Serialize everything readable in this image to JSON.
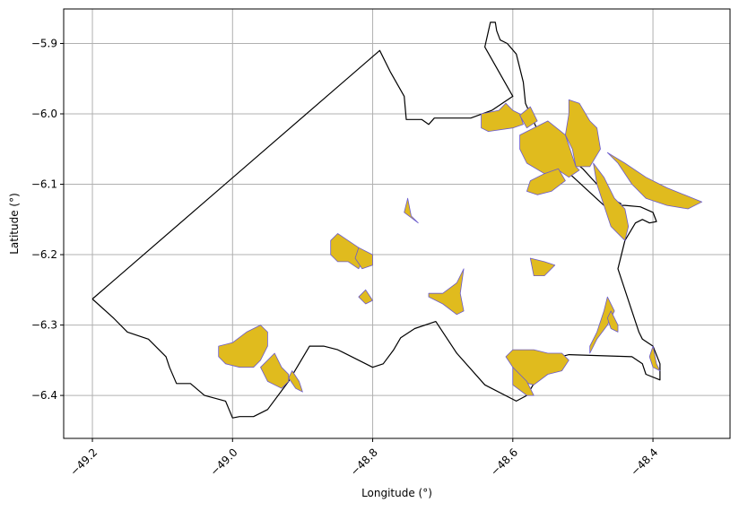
{
  "map": {
    "xlabel": "Longitude (°)",
    "ylabel": "Latitude (°)",
    "x_ticks": [
      {
        "value": -49.2,
        "label": "−49.2"
      },
      {
        "value": -49.0,
        "label": "−49.0"
      },
      {
        "value": -48.8,
        "label": "−48.8"
      },
      {
        "value": -48.6,
        "label": "−48.6"
      },
      {
        "value": -48.4,
        "label": "−48.4"
      }
    ],
    "y_ticks": [
      {
        "value": -5.9,
        "label": "−5.9"
      },
      {
        "value": -6.0,
        "label": "−6.0"
      },
      {
        "value": -6.1,
        "label": "−6.1"
      },
      {
        "value": -6.2,
        "label": "−6.2"
      },
      {
        "value": -6.3,
        "label": "−6.3"
      },
      {
        "value": -6.4,
        "label": "−6.4"
      }
    ],
    "xlim": [
      -49.241,
      -48.29
    ],
    "ylim": [
      -6.461,
      -5.851
    ],
    "grid": true,
    "colors": {
      "patch_fill": "#e0bb1e",
      "patch_edge": "#6a5acd",
      "boundary": "#000000",
      "grid": "#b0b0b0"
    },
    "boundary": [
      [
        -49.2,
        -6.263
      ],
      [
        -48.79,
        -5.91
      ],
      [
        -48.775,
        -5.94
      ],
      [
        -48.755,
        -5.975
      ],
      [
        -48.752,
        -6.008
      ],
      [
        -48.73,
        -6.008
      ],
      [
        -48.72,
        -6.015
      ],
      [
        -48.712,
        -6.006
      ],
      [
        -48.66,
        -6.006
      ],
      [
        -48.63,
        -5.995
      ],
      [
        -48.6,
        -5.975
      ],
      [
        -48.64,
        -5.905
      ],
      [
        -48.632,
        -5.87
      ],
      [
        -48.625,
        -5.87
      ],
      [
        -48.623,
        -5.882
      ],
      [
        -48.618,
        -5.895
      ],
      [
        -48.608,
        -5.9
      ],
      [
        -48.595,
        -5.915
      ],
      [
        -48.585,
        -5.955
      ],
      [
        -48.582,
        -5.985
      ],
      [
        -48.555,
        -6.045
      ],
      [
        -48.53,
        -6.075
      ],
      [
        -48.47,
        -6.13
      ],
      [
        -48.44,
        -6.13
      ],
      [
        -48.418,
        -6.132
      ],
      [
        -48.4,
        -6.14
      ],
      [
        -48.395,
        -6.153
      ],
      [
        -48.405,
        -6.155
      ],
      [
        -48.415,
        -6.15
      ],
      [
        -48.425,
        -6.155
      ],
      [
        -48.44,
        -6.18
      ],
      [
        -48.45,
        -6.22
      ],
      [
        -48.43,
        -6.28
      ],
      [
        -48.42,
        -6.31
      ],
      [
        -48.415,
        -6.32
      ],
      [
        -48.4,
        -6.33
      ],
      [
        -48.39,
        -6.355
      ],
      [
        -48.39,
        -6.378
      ],
      [
        -48.41,
        -6.37
      ],
      [
        -48.415,
        -6.355
      ],
      [
        -48.43,
        -6.345
      ],
      [
        -48.52,
        -6.342
      ],
      [
        -48.55,
        -6.35
      ],
      [
        -48.58,
        -6.4
      ],
      [
        -48.595,
        -6.408
      ],
      [
        -48.64,
        -6.385
      ],
      [
        -48.68,
        -6.34
      ],
      [
        -48.71,
        -6.295
      ],
      [
        -48.74,
        -6.305
      ],
      [
        -48.76,
        -6.318
      ],
      [
        -48.77,
        -6.335
      ],
      [
        -48.785,
        -6.355
      ],
      [
        -48.8,
        -6.36
      ],
      [
        -48.82,
        -6.35
      ],
      [
        -48.85,
        -6.335
      ],
      [
        -48.87,
        -6.33
      ],
      [
        -48.89,
        -6.33
      ],
      [
        -48.92,
        -6.38
      ],
      [
        -48.95,
        -6.42
      ],
      [
        -48.97,
        -6.43
      ],
      [
        -48.99,
        -6.43
      ],
      [
        -49.0,
        -6.432
      ],
      [
        -49.01,
        -6.408
      ],
      [
        -49.04,
        -6.4
      ],
      [
        -49.06,
        -6.383
      ],
      [
        -49.08,
        -6.383
      ],
      [
        -49.09,
        -6.36
      ],
      [
        -49.095,
        -6.345
      ],
      [
        -49.12,
        -6.32
      ],
      [
        -49.15,
        -6.31
      ],
      [
        -49.17,
        -6.29
      ],
      [
        -49.2,
        -6.263
      ]
    ],
    "internal_border": [
      [
        -48.505,
        -6.035
      ],
      [
        -48.51,
        -6.07
      ],
      [
        -48.5,
        -6.078
      ],
      [
        -48.48,
        -6.1
      ],
      [
        -48.46,
        -6.12
      ],
      [
        -48.445,
        -6.128
      ]
    ],
    "patches": [
      [
        [
          -48.645,
          -6.0
        ],
        [
          -48.62,
          -5.995
        ],
        [
          -48.61,
          -5.985
        ],
        [
          -48.6,
          -5.995
        ],
        [
          -48.59,
          -6.0
        ],
        [
          -48.585,
          -6.015
        ],
        [
          -48.6,
          -6.02
        ],
        [
          -48.635,
          -6.025
        ],
        [
          -48.645,
          -6.02
        ]
      ],
      [
        [
          -48.59,
          -6.002
        ],
        [
          -48.575,
          -5.99
        ],
        [
          -48.565,
          -6.01
        ],
        [
          -48.58,
          -6.02
        ]
      ],
      [
        [
          -48.52,
          -5.98
        ],
        [
          -48.505,
          -5.985
        ],
        [
          -48.49,
          -6.01
        ],
        [
          -48.48,
          -6.02
        ],
        [
          -48.475,
          -6.05
        ],
        [
          -48.49,
          -6.075
        ],
        [
          -48.51,
          -6.075
        ],
        [
          -48.515,
          -6.05
        ],
        [
          -48.525,
          -6.03
        ],
        [
          -48.52,
          -6.0
        ]
      ],
      [
        [
          -48.59,
          -6.03
        ],
        [
          -48.55,
          -6.01
        ],
        [
          -48.525,
          -6.03
        ],
        [
          -48.51,
          -6.075
        ],
        [
          -48.505,
          -6.08
        ],
        [
          -48.52,
          -6.09
        ],
        [
          -48.535,
          -6.08
        ],
        [
          -48.555,
          -6.085
        ],
        [
          -48.58,
          -6.07
        ],
        [
          -48.59,
          -6.05
        ]
      ],
      [
        [
          -48.575,
          -6.095
        ],
        [
          -48.555,
          -6.085
        ],
        [
          -48.535,
          -6.078
        ],
        [
          -48.525,
          -6.095
        ],
        [
          -48.545,
          -6.11
        ],
        [
          -48.565,
          -6.115
        ],
        [
          -48.58,
          -6.11
        ]
      ],
      [
        [
          -48.485,
          -6.07
        ],
        [
          -48.47,
          -6.09
        ],
        [
          -48.455,
          -6.12
        ],
        [
          -48.44,
          -6.135
        ],
        [
          -48.435,
          -6.16
        ],
        [
          -48.44,
          -6.18
        ],
        [
          -48.46,
          -6.16
        ],
        [
          -48.47,
          -6.13
        ],
        [
          -48.48,
          -6.1
        ]
      ],
      [
        [
          -48.465,
          -6.055
        ],
        [
          -48.45,
          -6.07
        ],
        [
          -48.43,
          -6.1
        ],
        [
          -48.41,
          -6.12
        ],
        [
          -48.38,
          -6.13
        ],
        [
          -48.35,
          -6.135
        ],
        [
          -48.33,
          -6.125
        ],
        [
          -48.38,
          -6.105
        ],
        [
          -48.41,
          -6.09
        ],
        [
          -48.44,
          -6.07
        ]
      ],
      [
        [
          -48.75,
          -6.12
        ],
        [
          -48.745,
          -6.145
        ],
        [
          -48.735,
          -6.155
        ],
        [
          -48.755,
          -6.14
        ]
      ],
      [
        [
          -48.835,
          -6.21
        ],
        [
          -48.85,
          -6.21
        ],
        [
          -48.86,
          -6.2
        ],
        [
          -48.86,
          -6.18
        ],
        [
          -48.85,
          -6.17
        ],
        [
          -48.835,
          -6.18
        ],
        [
          -48.82,
          -6.19
        ],
        [
          -48.815,
          -6.21
        ],
        [
          -48.82,
          -6.22
        ]
      ],
      [
        [
          -48.82,
          -6.19
        ],
        [
          -48.8,
          -6.2
        ],
        [
          -48.8,
          -6.215
        ],
        [
          -48.815,
          -6.22
        ],
        [
          -48.825,
          -6.205
        ]
      ],
      [
        [
          -48.81,
          -6.25
        ],
        [
          -48.8,
          -6.265
        ],
        [
          -48.81,
          -6.27
        ],
        [
          -48.82,
          -6.26
        ]
      ],
      [
        [
          -48.68,
          -6.285
        ],
        [
          -48.7,
          -6.27
        ],
        [
          -48.72,
          -6.26
        ],
        [
          -48.72,
          -6.255
        ],
        [
          -48.7,
          -6.255
        ],
        [
          -48.68,
          -6.24
        ],
        [
          -48.67,
          -6.22
        ],
        [
          -48.675,
          -6.255
        ],
        [
          -48.67,
          -6.28
        ]
      ],
      [
        [
          -48.575,
          -6.205
        ],
        [
          -48.57,
          -6.23
        ],
        [
          -48.555,
          -6.23
        ],
        [
          -48.54,
          -6.215
        ],
        [
          -48.555,
          -6.21
        ]
      ],
      [
        [
          -48.465,
          -6.26
        ],
        [
          -48.47,
          -6.28
        ],
        [
          -48.48,
          -6.31
        ],
        [
          -48.49,
          -6.33
        ],
        [
          -48.49,
          -6.34
        ],
        [
          -48.48,
          -6.32
        ],
        [
          -48.465,
          -6.3
        ],
        [
          -48.455,
          -6.28
        ]
      ],
      [
        [
          -48.46,
          -6.28
        ],
        [
          -48.45,
          -6.3
        ],
        [
          -48.45,
          -6.31
        ],
        [
          -48.46,
          -6.305
        ],
        [
          -48.465,
          -6.29
        ]
      ],
      [
        [
          -48.4,
          -6.33
        ],
        [
          -48.395,
          -6.355
        ],
        [
          -48.39,
          -6.365
        ],
        [
          -48.4,
          -6.36
        ],
        [
          -48.405,
          -6.345
        ]
      ],
      [
        [
          -48.61,
          -6.345
        ],
        [
          -48.6,
          -6.36
        ],
        [
          -48.59,
          -6.38
        ],
        [
          -48.57,
          -6.385
        ],
        [
          -48.55,
          -6.37
        ],
        [
          -48.53,
          -6.365
        ],
        [
          -48.52,
          -6.35
        ],
        [
          -48.53,
          -6.34
        ],
        [
          -48.55,
          -6.34
        ],
        [
          -48.57,
          -6.335
        ],
        [
          -48.6,
          -6.335
        ]
      ],
      [
        [
          -48.6,
          -6.36
        ],
        [
          -48.58,
          -6.38
        ],
        [
          -48.57,
          -6.4
        ],
        [
          -48.58,
          -6.4
        ],
        [
          -48.6,
          -6.385
        ]
      ],
      [
        [
          -49.02,
          -6.33
        ],
        [
          -49.0,
          -6.325
        ],
        [
          -48.98,
          -6.31
        ],
        [
          -48.96,
          -6.3
        ],
        [
          -48.95,
          -6.31
        ],
        [
          -48.95,
          -6.33
        ],
        [
          -48.96,
          -6.35
        ],
        [
          -48.97,
          -6.36
        ],
        [
          -48.99,
          -6.36
        ],
        [
          -49.01,
          -6.355
        ],
        [
          -49.02,
          -6.345
        ]
      ],
      [
        [
          -48.94,
          -6.34
        ],
        [
          -48.93,
          -6.36
        ],
        [
          -48.92,
          -6.37
        ],
        [
          -48.92,
          -6.38
        ],
        [
          -48.93,
          -6.39
        ],
        [
          -48.95,
          -6.38
        ],
        [
          -48.96,
          -6.36
        ]
      ],
      [
        [
          -48.915,
          -6.365
        ],
        [
          -48.905,
          -6.38
        ],
        [
          -48.9,
          -6.395
        ],
        [
          -48.91,
          -6.39
        ],
        [
          -48.92,
          -6.375
        ]
      ]
    ]
  }
}
